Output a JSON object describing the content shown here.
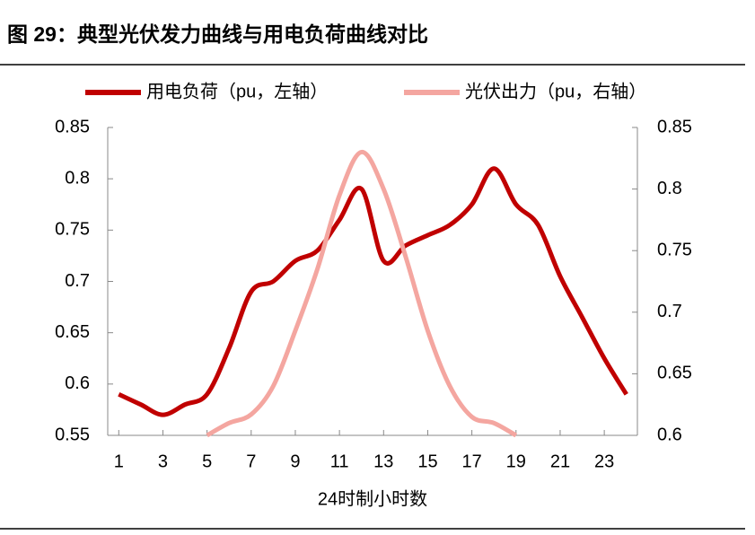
{
  "chart_data": {
    "type": "line",
    "title": "图 29：典型光伏发力曲线与用电负荷曲线对比",
    "x_label": "24时制小时数",
    "x": [
      1,
      2,
      3,
      4,
      5,
      6,
      7,
      8,
      9,
      10,
      11,
      12,
      13,
      14,
      15,
      16,
      17,
      18,
      19,
      20,
      21,
      22,
      23,
      24
    ],
    "xlim": [
      0.5,
      24.5
    ],
    "xticks": [
      1,
      3,
      5,
      7,
      9,
      11,
      13,
      15,
      17,
      19,
      21,
      23
    ],
    "ylim": [
      0.55,
      0.85
    ],
    "yticks": [
      0.55,
      0.6,
      0.65,
      0.7,
      0.75,
      0.8,
      0.85
    ],
    "y2lim": [
      0.6,
      0.85
    ],
    "y2ticks": [
      0.6,
      0.65,
      0.7,
      0.75,
      0.8,
      0.85
    ],
    "series": [
      {
        "name": "用电负荷（pu，左轴）",
        "color": "#c00000",
        "values": [
          0.59,
          0.58,
          0.57,
          0.58,
          0.59,
          0.635,
          0.69,
          0.7,
          0.72,
          0.73,
          0.76,
          0.79,
          0.72,
          0.735,
          0.745,
          0.755,
          0.775,
          0.81,
          0.775,
          0.755,
          0.705,
          0.665,
          0.625,
          0.59
        ]
      },
      {
        "name": "光伏出力（pu，右轴）",
        "color": "#f4a6a0",
        "axis": "y2",
        "values": [
          null,
          null,
          null,
          null,
          0.6,
          0.61,
          0.617,
          0.64,
          0.685,
          0.735,
          0.795,
          0.83,
          0.8,
          0.745,
          0.685,
          0.64,
          0.615,
          0.61,
          0.6,
          null,
          null,
          null,
          null,
          null
        ]
      }
    ]
  }
}
